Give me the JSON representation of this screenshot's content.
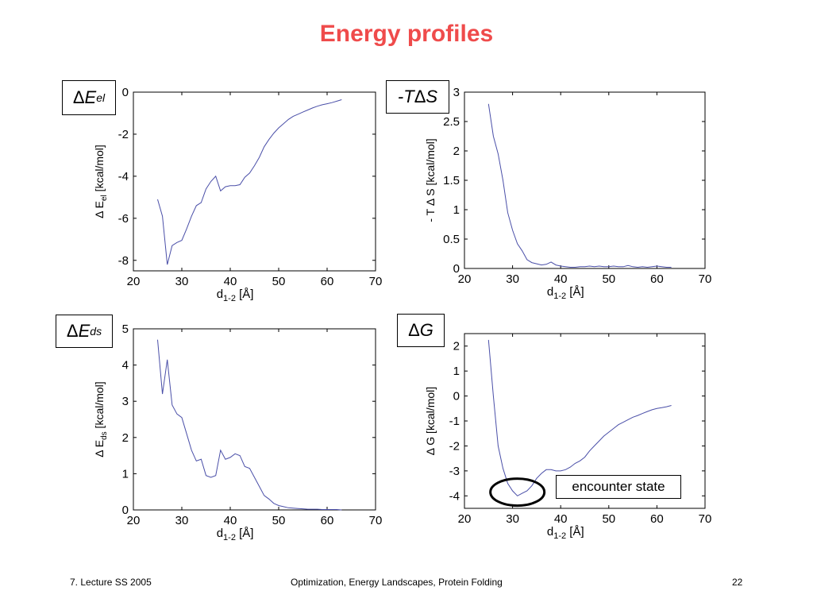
{
  "slide": {
    "title": "Energy profiles",
    "footer_left": "7. Lecture SS 2005",
    "footer_center": "Optimization, Energy Landscapes, Protein Folding",
    "footer_right": "22"
  },
  "colors": {
    "title": "#ef4b4b",
    "line": "#4a4fa8"
  },
  "chart_data": [
    {
      "type": "line",
      "panel_label": "ΔEel",
      "xlabel": "d1-2 [Å]",
      "ylabel": "Δ Eel [kcal/mol]",
      "xlim": [
        20,
        70
      ],
      "ylim": [
        -8.5,
        0
      ],
      "xticks": [
        20,
        30,
        40,
        50,
        60,
        70
      ],
      "yticks": [
        -8,
        -6,
        -4,
        -2,
        0
      ],
      "x": [
        25,
        26,
        27,
        28,
        29,
        30,
        31,
        32,
        33,
        34,
        35,
        36,
        37,
        38,
        39,
        40,
        41,
        42,
        43,
        44,
        45,
        46,
        47,
        48,
        49,
        50,
        51,
        52,
        53,
        54,
        55,
        56,
        57,
        58,
        59,
        60,
        61,
        62,
        63
      ],
      "values": [
        -5.1,
        -5.9,
        -8.2,
        -7.3,
        -7.15,
        -7.05,
        -6.5,
        -5.9,
        -5.4,
        -5.25,
        -4.6,
        -4.25,
        -4.0,
        -4.7,
        -4.5,
        -4.45,
        -4.45,
        -4.4,
        -4.05,
        -3.85,
        -3.5,
        -3.1,
        -2.6,
        -2.25,
        -1.95,
        -1.7,
        -1.5,
        -1.3,
        -1.15,
        -1.05,
        -0.95,
        -0.85,
        -0.75,
        -0.67,
        -0.6,
        -0.55,
        -0.5,
        -0.43,
        -0.36
      ]
    },
    {
      "type": "line",
      "panel_label": "-TΔS",
      "xlabel": "d1-2 [Å]",
      "ylabel": "- T Δ S [kcal/mol]",
      "xlim": [
        20,
        70
      ],
      "ylim": [
        0,
        3
      ],
      "xticks": [
        20,
        30,
        40,
        50,
        60,
        70
      ],
      "yticks": [
        0,
        0.5,
        1,
        1.5,
        2,
        2.5,
        3
      ],
      "x": [
        25,
        26,
        27,
        28,
        29,
        30,
        31,
        32,
        33,
        34,
        35,
        36,
        37,
        38,
        39,
        40,
        41,
        42,
        43,
        44,
        45,
        46,
        47,
        48,
        49,
        50,
        51,
        52,
        53,
        54,
        55,
        56,
        57,
        58,
        59,
        60,
        61,
        62,
        63
      ],
      "values": [
        2.8,
        2.25,
        1.95,
        1.5,
        0.95,
        0.65,
        0.42,
        0.3,
        0.15,
        0.1,
        0.08,
        0.06,
        0.07,
        0.11,
        0.06,
        0.04,
        0.03,
        0.02,
        0.02,
        0.03,
        0.03,
        0.04,
        0.03,
        0.04,
        0.03,
        0.03,
        0.04,
        0.03,
        0.03,
        0.05,
        0.03,
        0.02,
        0.03,
        0.02,
        0.03,
        0.04,
        0.03,
        0.02,
        0.02
      ]
    },
    {
      "type": "line",
      "panel_label": "ΔEds",
      "xlabel": "d1-2 [Å]",
      "ylabel": "Δ Eds [kcal/mol]",
      "xlim": [
        20,
        70
      ],
      "ylim": [
        0,
        5
      ],
      "xticks": [
        20,
        30,
        40,
        50,
        60,
        70
      ],
      "yticks": [
        0,
        1,
        2,
        3,
        4,
        5
      ],
      "x": [
        25,
        26,
        27,
        28,
        29,
        30,
        31,
        32,
        33,
        34,
        35,
        36,
        37,
        38,
        39,
        40,
        41,
        42,
        43,
        44,
        45,
        46,
        47,
        48,
        49,
        50,
        51,
        52,
        53,
        54,
        55,
        56,
        57,
        58,
        59,
        60,
        61,
        62,
        63
      ],
      "values": [
        4.7,
        3.2,
        4.15,
        2.9,
        2.65,
        2.55,
        2.1,
        1.65,
        1.35,
        1.4,
        0.95,
        0.9,
        0.95,
        1.65,
        1.4,
        1.45,
        1.55,
        1.5,
        1.2,
        1.15,
        0.9,
        0.65,
        0.4,
        0.3,
        0.18,
        0.12,
        0.09,
        0.06,
        0.05,
        0.04,
        0.03,
        0.02,
        0.02,
        0.02,
        0.01,
        0.01,
        0.01,
        0.01,
        0.0
      ]
    },
    {
      "type": "line",
      "panel_label": "ΔG",
      "xlabel": "d1-2 [Å]",
      "ylabel": "Δ G [kcal/mol]",
      "xlim": [
        20,
        70
      ],
      "ylim": [
        -4.5,
        2.5
      ],
      "xticks": [
        20,
        30,
        40,
        50,
        60,
        70
      ],
      "yticks": [
        -4,
        -3,
        -2,
        -1,
        0,
        1,
        2
      ],
      "x": [
        25,
        26,
        27,
        28,
        29,
        30,
        31,
        32,
        33,
        34,
        35,
        36,
        37,
        38,
        39,
        40,
        41,
        42,
        43,
        44,
        45,
        46,
        47,
        48,
        49,
        50,
        51,
        52,
        53,
        54,
        55,
        56,
        57,
        58,
        59,
        60,
        61,
        62,
        63
      ],
      "values": [
        2.25,
        0.0,
        -2.0,
        -2.9,
        -3.5,
        -3.8,
        -4.0,
        -3.9,
        -3.8,
        -3.6,
        -3.3,
        -3.1,
        -2.95,
        -2.95,
        -3.0,
        -3.0,
        -2.95,
        -2.85,
        -2.7,
        -2.6,
        -2.45,
        -2.2,
        -2.0,
        -1.8,
        -1.6,
        -1.45,
        -1.3,
        -1.15,
        -1.05,
        -0.95,
        -0.85,
        -0.78,
        -0.7,
        -0.62,
        -0.55,
        -0.5,
        -0.47,
        -0.43,
        -0.38
      ],
      "annotation": "encounter state"
    }
  ]
}
